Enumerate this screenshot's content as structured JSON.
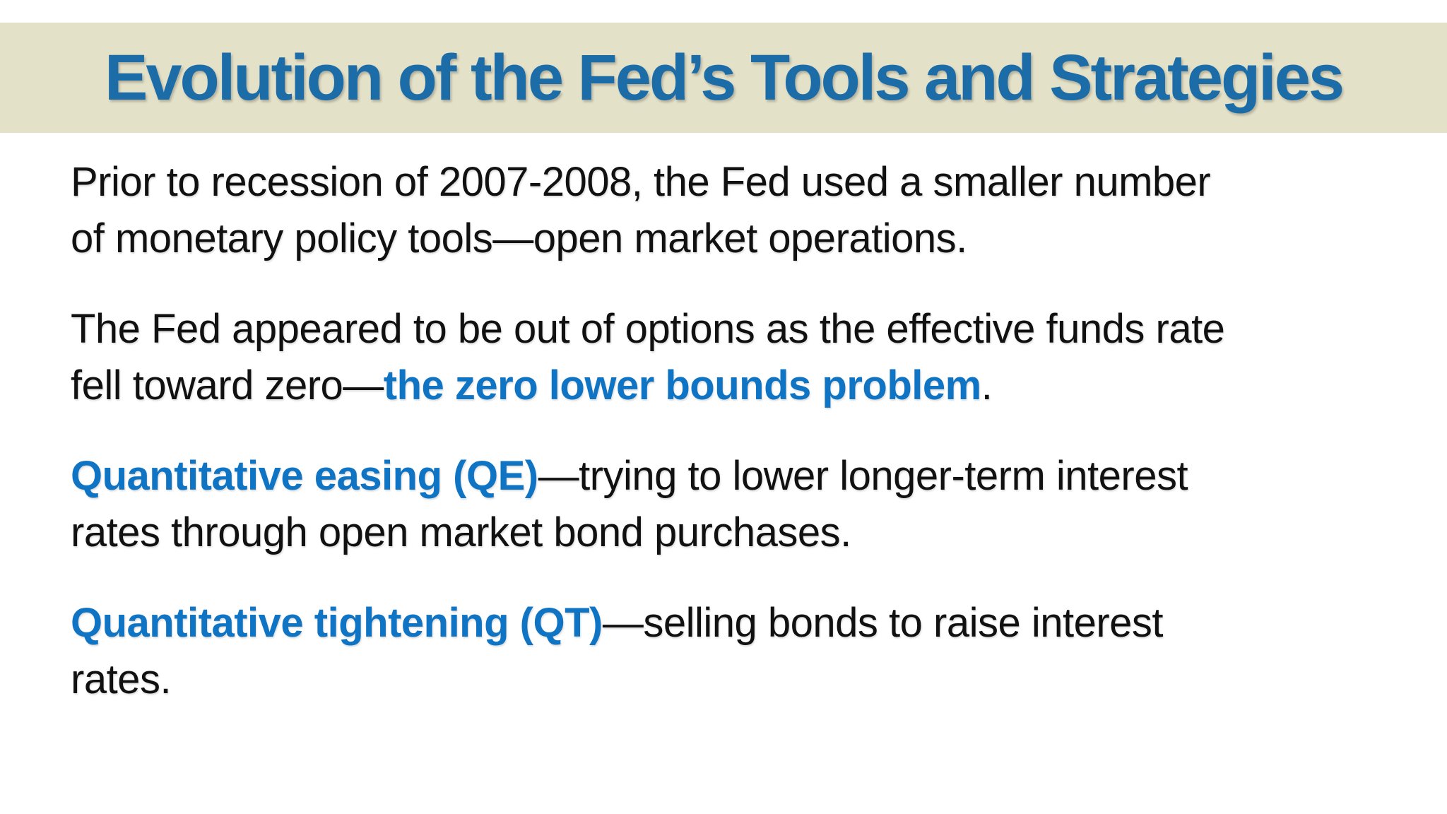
{
  "title": {
    "text": "Evolution of the Fed’s Tools and Strategies"
  },
  "colors": {
    "title_bar_background": "#e4e1c9",
    "title_text": "#1b6ca7",
    "body_text": "#111111",
    "emphasis_blue": "#0f74c4",
    "slide_background": "#ffffff"
  },
  "body": {
    "paragraphs": [
      {
        "lines": [
          [
            {
              "t": "Prior to recession of 2007-2008, the Fed used a smaller number"
            }
          ],
          [
            {
              "t": "of monetary policy tools—open market operations."
            }
          ]
        ]
      },
      {
        "lines": [
          [
            {
              "t": "The Fed appeared to be out of options as the effective funds rate"
            }
          ],
          [
            {
              "t": "fell toward zero—"
            },
            {
              "t": "the zero lower bounds problem",
              "b": true
            },
            {
              "t": "."
            }
          ]
        ]
      },
      {
        "lines": [
          [
            {
              "t": "Quantitative easing (QE)",
              "b": true
            },
            {
              "t": "—trying to lower longer-term interest"
            }
          ],
          [
            {
              "t": "rates through open market bond purchases."
            }
          ]
        ]
      },
      {
        "lines": [
          [
            {
              "t": "Quantitative tightening (QT)",
              "b": true
            },
            {
              "t": "—selling bonds to raise interest"
            }
          ],
          [
            {
              "t": "rates."
            }
          ]
        ]
      }
    ]
  }
}
